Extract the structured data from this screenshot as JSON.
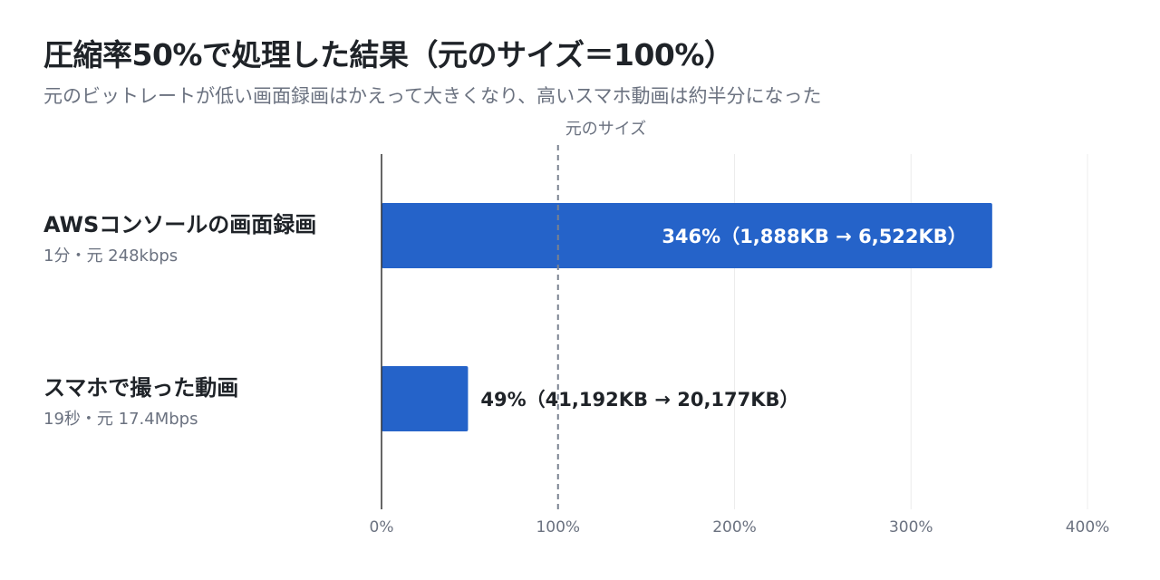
{
  "title": "圧縮率50%で処理した結果（元のサイズ＝100%）",
  "subtitle": "元のビットレートが低い画面録画はかえって大きくなり、高いスマホ動画は約半分になった",
  "chart_data": {
    "type": "bar",
    "orientation": "horizontal",
    "categories": [
      "AWSコンソールの画面録画",
      "スマホで撮った動画"
    ],
    "category_details": [
      "1分・元 248kbps",
      "19秒・元 17.4Mbps"
    ],
    "values": [
      346,
      49
    ],
    "value_labels": [
      "346%（1,888KB → 6,522KB）",
      "49%（41,192KB → 20,177KB）"
    ],
    "xlim": [
      0,
      400
    ],
    "xticks": [
      0,
      100,
      200,
      300,
      400
    ],
    "xtick_labels": [
      "0%",
      "100%",
      "200%",
      "300%",
      "400%"
    ],
    "reference_line": {
      "value": 100,
      "label": "元のサイズ",
      "style": "dashed"
    },
    "grid": "vertical",
    "bar_color": "#2563c9"
  }
}
